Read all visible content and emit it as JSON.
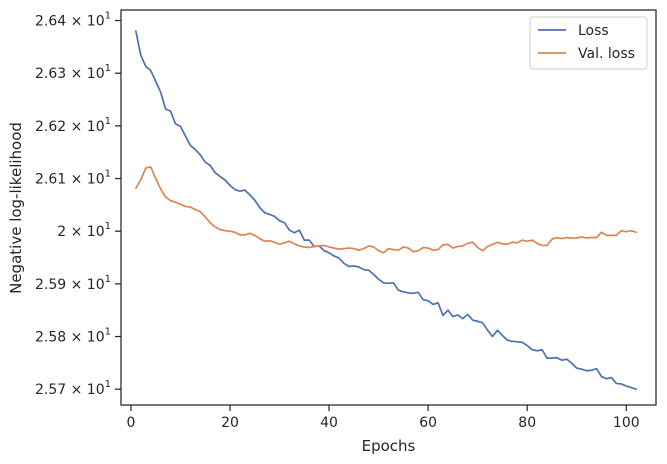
{
  "chart_data": {
    "type": "line",
    "title": "",
    "xlabel": "Epochs",
    "ylabel": "Negative log-likelihood",
    "xlim": [
      -2,
      106
    ],
    "ylim": [
      25.67,
      26.42
    ],
    "xticks": [
      0,
      20,
      40,
      60,
      80,
      100
    ],
    "xtick_labels": [
      "0",
      "20",
      "40",
      "60",
      "80",
      "100"
    ],
    "yticks": [
      25.7,
      25.8,
      25.9,
      26.0,
      26.1,
      26.2,
      26.3,
      26.4
    ],
    "ytick_labels": [
      {
        "mantissa": "2.57",
        "exp": "1"
      },
      {
        "mantissa": "2.58",
        "exp": "1"
      },
      {
        "mantissa": "2.59",
        "exp": "1"
      },
      {
        "mantissa": "2",
        "exp": "1"
      },
      {
        "mantissa": "2.61",
        "exp": "1"
      },
      {
        "mantissa": "2.62",
        "exp": "1"
      },
      {
        "mantissa": "2.63",
        "exp": "1"
      },
      {
        "mantissa": "2.64",
        "exp": "1"
      }
    ],
    "y_scale": "log",
    "grid": false,
    "legend_position": "top-right",
    "series": [
      {
        "name": "Loss",
        "color": "#4c72b0",
        "x": [
          1,
          2,
          3,
          4,
          5,
          6,
          7,
          8,
          9,
          10,
          11,
          12,
          13,
          14,
          15,
          16,
          17,
          18,
          19,
          20,
          21,
          22,
          23,
          24,
          25,
          26,
          27,
          28,
          29,
          30,
          31,
          32,
          33,
          34,
          35,
          36,
          37,
          38,
          39,
          40,
          41,
          42,
          43,
          44,
          45,
          46,
          47,
          48,
          49,
          50,
          51,
          52,
          53,
          54,
          55,
          56,
          57,
          58,
          59,
          60,
          61,
          62,
          63,
          64,
          65,
          66,
          67,
          68,
          69,
          70,
          71,
          72,
          73,
          74,
          75,
          76,
          77,
          78,
          79,
          80,
          81,
          82,
          83,
          84,
          85,
          86,
          87,
          88,
          89,
          90,
          91,
          92,
          93,
          94,
          95,
          96,
          97,
          98,
          99,
          100,
          101,
          102
        ],
        "y": [
          26.38,
          26.334,
          26.313,
          26.305,
          26.285,
          26.264,
          26.232,
          26.228,
          26.204,
          26.199,
          26.181,
          26.163,
          26.155,
          26.145,
          26.131,
          26.125,
          26.111,
          26.104,
          26.097,
          26.087,
          26.079,
          26.076,
          26.078,
          26.069,
          26.059,
          26.045,
          26.035,
          26.032,
          26.028,
          26.02,
          26.016,
          26.002,
          25.997,
          26.002,
          25.983,
          25.983,
          25.971,
          25.972,
          25.963,
          25.959,
          25.953,
          25.949,
          25.939,
          25.933,
          25.934,
          25.932,
          25.927,
          25.926,
          25.918,
          25.909,
          25.902,
          25.901,
          25.902,
          25.888,
          25.885,
          25.883,
          25.882,
          25.884,
          25.87,
          25.868,
          25.861,
          25.864,
          25.84,
          25.85,
          25.838,
          25.841,
          25.834,
          25.842,
          25.831,
          25.829,
          25.826,
          25.812,
          25.8,
          25.812,
          25.802,
          25.793,
          25.791,
          25.79,
          25.789,
          25.783,
          25.775,
          25.773,
          25.775,
          25.759,
          25.759,
          25.76,
          25.755,
          25.757,
          25.749,
          25.74,
          25.738,
          25.735,
          25.736,
          25.739,
          25.724,
          25.72,
          25.722,
          25.711,
          25.71,
          25.706,
          25.703,
          25.7
        ]
      },
      {
        "name": "Val. loss",
        "color": "#dd8452",
        "x": [
          1,
          2,
          3,
          4,
          5,
          6,
          7,
          8,
          9,
          10,
          11,
          12,
          13,
          14,
          15,
          16,
          17,
          18,
          19,
          20,
          21,
          22,
          23,
          24,
          25,
          26,
          27,
          28,
          29,
          30,
          31,
          32,
          33,
          34,
          35,
          36,
          37,
          38,
          39,
          40,
          41,
          42,
          43,
          44,
          45,
          46,
          47,
          48,
          49,
          50,
          51,
          52,
          53,
          54,
          55,
          56,
          57,
          58,
          59,
          60,
          61,
          62,
          63,
          64,
          65,
          66,
          67,
          68,
          69,
          70,
          71,
          72,
          73,
          74,
          75,
          76,
          77,
          78,
          79,
          80,
          81,
          82,
          83,
          84,
          85,
          86,
          87,
          88,
          89,
          90,
          91,
          92,
          93,
          94,
          95,
          96,
          97,
          98,
          99,
          100,
          101,
          102
        ],
        "y": [
          26.082,
          26.098,
          26.12,
          26.122,
          26.1,
          26.08,
          26.065,
          26.058,
          26.055,
          26.051,
          26.047,
          26.046,
          26.041,
          26.037,
          26.027,
          26.016,
          26.008,
          26.003,
          26.001,
          26.0,
          25.998,
          25.993,
          25.993,
          25.996,
          25.992,
          25.986,
          25.981,
          25.982,
          25.979,
          25.975,
          25.978,
          25.981,
          25.976,
          25.972,
          25.97,
          25.969,
          25.971,
          25.972,
          25.973,
          25.97,
          25.968,
          25.966,
          25.967,
          25.968,
          25.967,
          25.964,
          25.967,
          25.972,
          25.97,
          25.963,
          25.959,
          25.967,
          25.965,
          25.964,
          25.97,
          25.968,
          25.961,
          25.963,
          25.969,
          25.968,
          25.964,
          25.965,
          25.974,
          25.975,
          25.968,
          25.971,
          25.972,
          25.977,
          25.979,
          25.969,
          25.963,
          25.971,
          25.975,
          25.979,
          25.976,
          25.975,
          25.979,
          25.978,
          25.983,
          25.981,
          25.983,
          25.977,
          25.973,
          25.973,
          25.985,
          25.988,
          25.986,
          25.988,
          25.987,
          25.987,
          25.989,
          25.987,
          25.988,
          25.988,
          25.998,
          25.992,
          25.992,
          25.992,
          26.001,
          25.999,
          26.001,
          25.998
        ]
      }
    ]
  }
}
